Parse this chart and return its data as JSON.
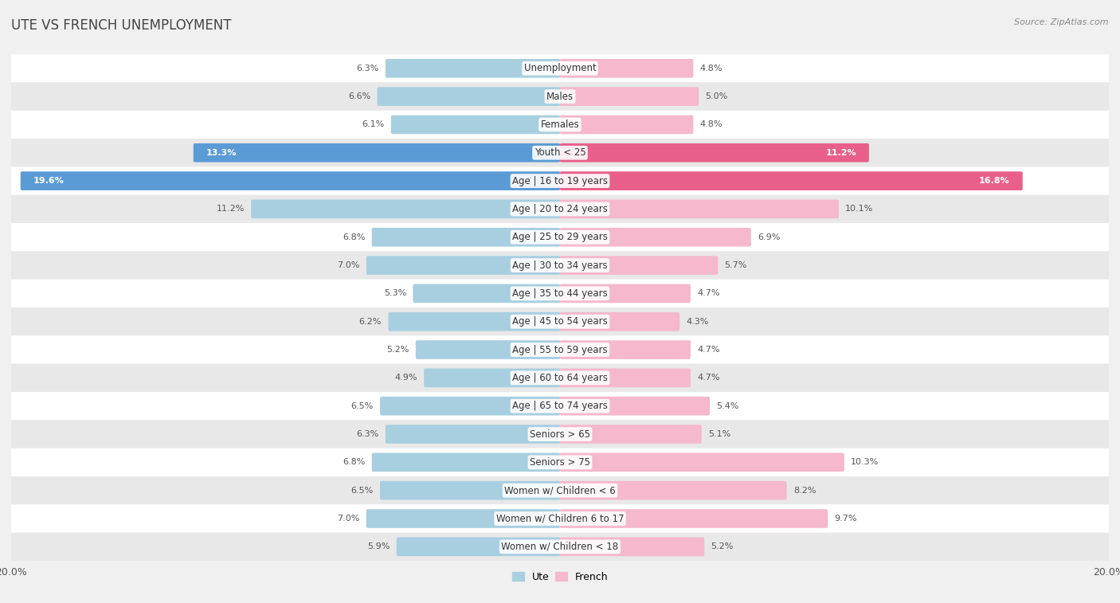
{
  "title": "UTE VS FRENCH UNEMPLOYMENT",
  "source": "Source: ZipAtlas.com",
  "categories": [
    "Unemployment",
    "Males",
    "Females",
    "Youth < 25",
    "Age | 16 to 19 years",
    "Age | 20 to 24 years",
    "Age | 25 to 29 years",
    "Age | 30 to 34 years",
    "Age | 35 to 44 years",
    "Age | 45 to 54 years",
    "Age | 55 to 59 years",
    "Age | 60 to 64 years",
    "Age | 65 to 74 years",
    "Seniors > 65",
    "Seniors > 75",
    "Women w/ Children < 6",
    "Women w/ Children 6 to 17",
    "Women w/ Children < 18"
  ],
  "ute_values": [
    6.3,
    6.6,
    6.1,
    13.3,
    19.6,
    11.2,
    6.8,
    7.0,
    5.3,
    6.2,
    5.2,
    4.9,
    6.5,
    6.3,
    6.8,
    6.5,
    7.0,
    5.9
  ],
  "french_values": [
    4.8,
    5.0,
    4.8,
    11.2,
    16.8,
    10.1,
    6.9,
    5.7,
    4.7,
    4.3,
    4.7,
    4.7,
    5.4,
    5.1,
    10.3,
    8.2,
    9.7,
    5.2
  ],
  "ute_color": "#a8cfe0",
  "french_color": "#f5b8cc",
  "ute_color_highlight": "#5b9bd5",
  "french_color_highlight": "#e8608a",
  "max_val": 20.0,
  "bar_height": 0.55,
  "bg_color": "#f0f0f0",
  "row_color_odd": "#ffffff",
  "row_color_even": "#e8e8e8",
  "label_fontsize": 8.5,
  "title_fontsize": 12,
  "value_fontsize": 8,
  "highlight_rows": [
    3,
    4
  ]
}
